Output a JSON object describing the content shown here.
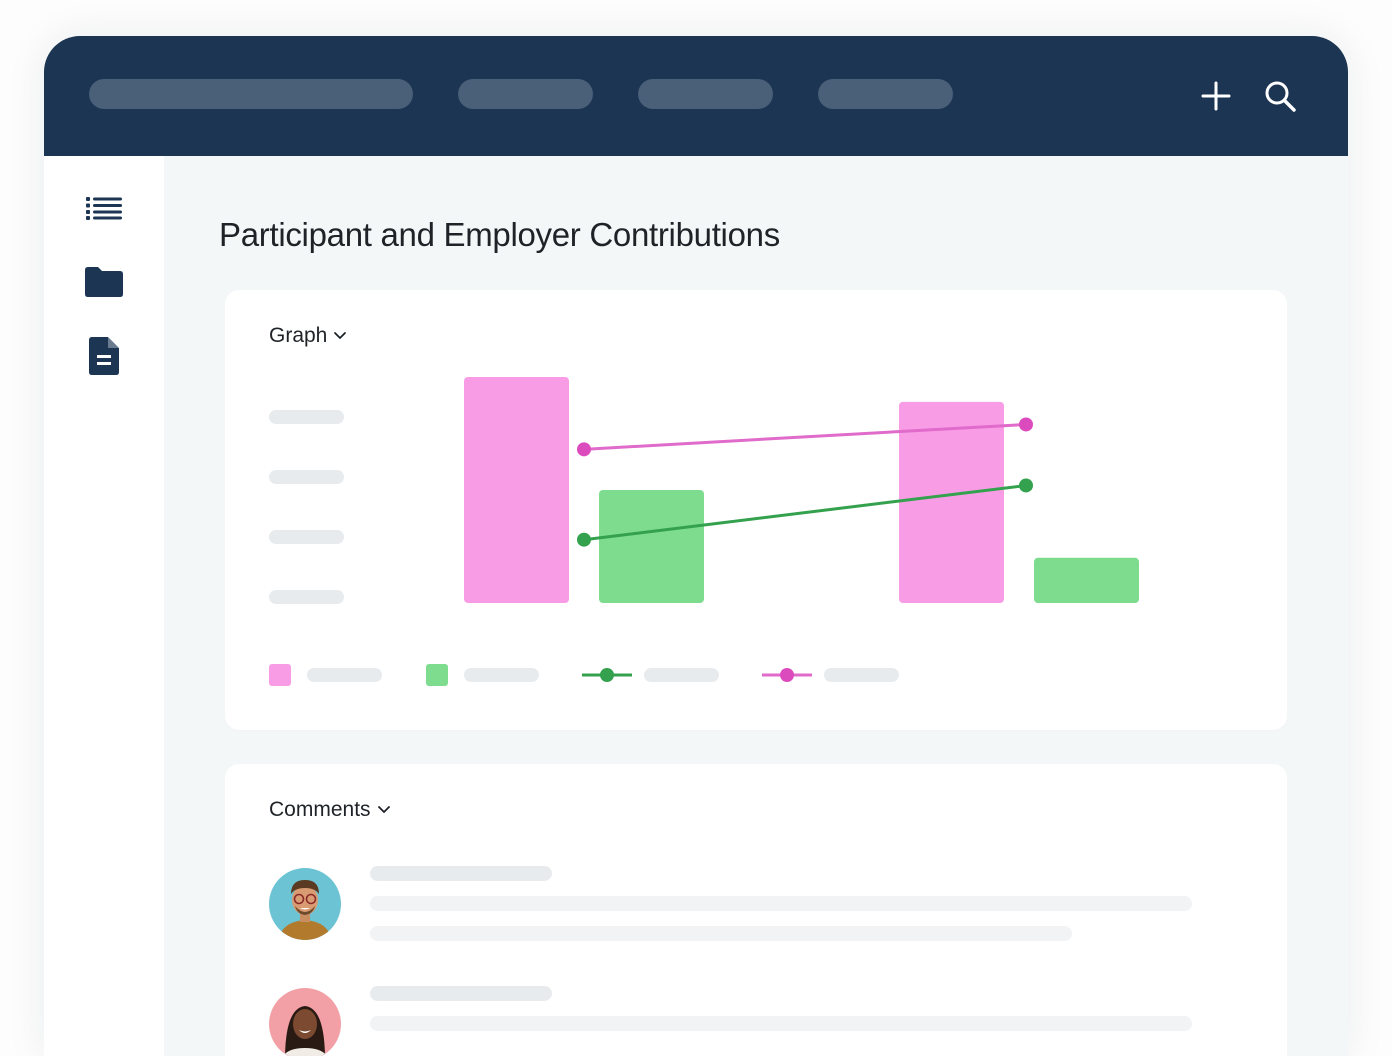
{
  "topbar": {
    "icons": {
      "plus": "plus-icon",
      "search": "search-icon"
    }
  },
  "sidebar": {
    "icons": [
      "list-icon",
      "folder-icon",
      "document-icon"
    ]
  },
  "page": {
    "title": "Participant and Employer Contributions"
  },
  "graph_card": {
    "label": "Graph",
    "toggle_icon": "chevron-down-icon"
  },
  "comments_card": {
    "label": "Comments",
    "toggle_icon": "chevron-down-icon"
  },
  "colors": {
    "navy": "#1b3553",
    "pink_bar": "#f99ce6",
    "pink_line": "#e06bcb",
    "pink_dot": "#dc4bbe",
    "green_bar": "#7ddc8e",
    "green_line": "#33a14d",
    "skeleton": "#e8ebee"
  },
  "chart_data": {
    "type": "bar",
    "title": "",
    "categories": [
      "",
      ""
    ],
    "series": [
      {
        "kind": "bar",
        "color": "#f99ce6",
        "values": [
          100,
          89
        ]
      },
      {
        "kind": "bar",
        "color": "#7ddc8e",
        "values": [
          50,
          20
        ]
      },
      {
        "kind": "line",
        "color": "#e06bcb",
        "values": [
          68,
          79
        ]
      },
      {
        "kind": "line",
        "color": "#33a14d",
        "values": [
          28,
          52
        ]
      }
    ],
    "ylim": [
      0,
      100
    ],
    "grid": false,
    "legend": "bottom"
  }
}
